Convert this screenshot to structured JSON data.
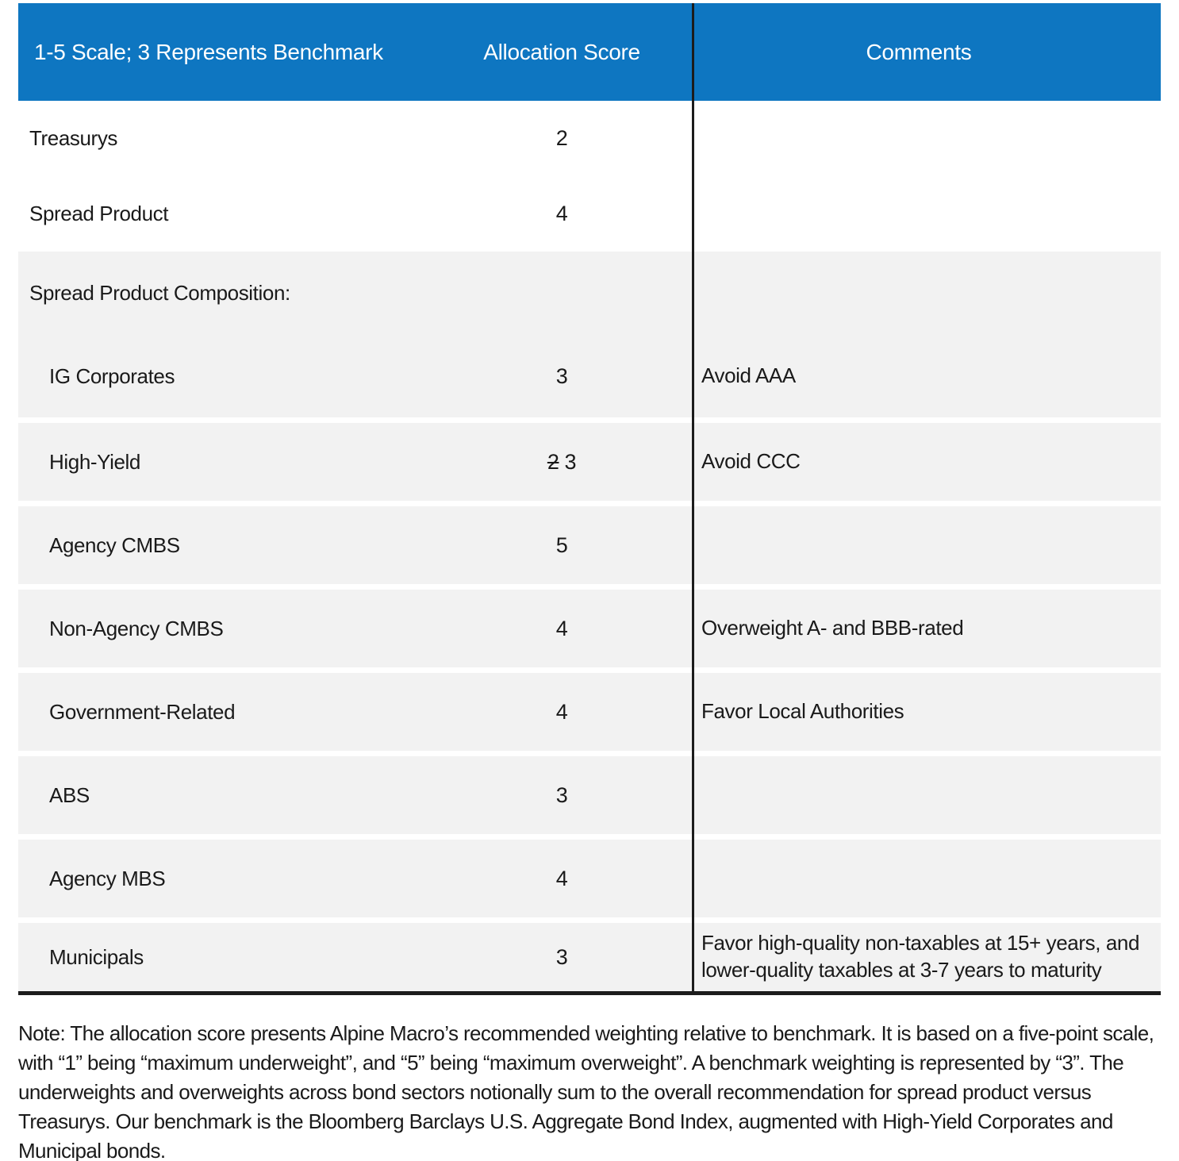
{
  "colors": {
    "header_blue": "#0e76c1",
    "row_gray": "#f2f2f2",
    "line_dark": "#1c1c1c",
    "text": "#1a1a1a"
  },
  "table": {
    "header": {
      "scale_label": "1-5 Scale; 3 Represents Benchmark",
      "score_label": "Allocation Score",
      "comments_label": "Comments"
    },
    "rows": [
      {
        "kind": "top",
        "indent": false,
        "gap_before": false,
        "label": "Treasurys",
        "score": "2",
        "comment": ""
      },
      {
        "kind": "top",
        "indent": false,
        "gap_before": false,
        "label": "Spread Product",
        "score": "4",
        "comment": ""
      },
      {
        "kind": "section",
        "indent": false,
        "gap_before": false,
        "label": "Spread Product Composition:",
        "score": "",
        "comment": ""
      },
      {
        "kind": "subfirst",
        "indent": true,
        "gap_before": false,
        "label": "IG Corporates",
        "score": "3",
        "comment": "Avoid AAA"
      },
      {
        "kind": "sub",
        "indent": true,
        "gap_before": true,
        "label": "High-Yield",
        "old_score": "2",
        "score": "3",
        "comment": "Avoid CCC"
      },
      {
        "kind": "sub",
        "indent": true,
        "gap_before": true,
        "label": "Agency CMBS",
        "score": "5",
        "comment": ""
      },
      {
        "kind": "sub",
        "indent": true,
        "gap_before": true,
        "label": "Non-Agency CMBS",
        "score": "4",
        "comment": "Overweight A- and BBB-rated"
      },
      {
        "kind": "sub",
        "indent": true,
        "gap_before": true,
        "label": "Government-Related",
        "score": "4",
        "comment": "Favor Local Authorities"
      },
      {
        "kind": "sub",
        "indent": true,
        "gap_before": true,
        "label": "ABS",
        "score": "3",
        "comment": ""
      },
      {
        "kind": "sub",
        "indent": true,
        "gap_before": true,
        "label": "Agency MBS",
        "score": "4",
        "comment": ""
      },
      {
        "kind": "sub",
        "indent": true,
        "gap_before": true,
        "label": "Municipals",
        "score": "3",
        "comment": "Favor high-quality non-taxables at 15+ years, and lower-quality taxables at 3-7 years to maturity"
      }
    ]
  },
  "note": "Note: The allocation score presents Alpine Macro’s recommended weighting relative to benchmark. It is based on a five-point scale, with “1” being “maximum underweight”, and “5” being “maximum overweight”. A benchmark weighting is represented by “3”. The underweights and overweights across bond sectors notionally sum to the overall recommendation for spread product versus Treasurys. Our benchmark is the Bloomberg Barclays U.S. Aggregate Bond Index, augmented with High-Yield Corporates and Municipal bonds."
}
